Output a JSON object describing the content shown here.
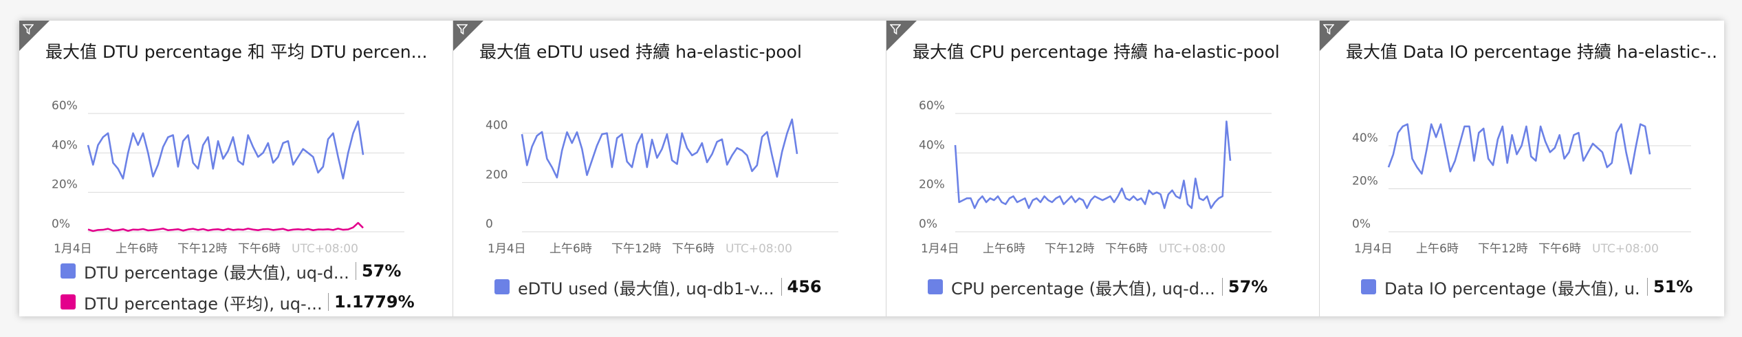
{
  "tiles": [
    {
      "title": "最大值 DTU percentage 和 平均 DTU percen...",
      "legend": [
        {
          "label": "DTU percentage (最大值), uq-d...",
          "value": "57%",
          "color": "#6b81e6"
        },
        {
          "label": "DTU percentage (平均), uq-...",
          "value": "1.1779%",
          "color": "#e3008c"
        }
      ]
    },
    {
      "title": "最大值 eDTU used 持續 ha-elastic-pool",
      "legend": [
        {
          "label": "eDTU used (最大值), uq-db1-v...",
          "value": "456",
          "color": "#6b81e6"
        }
      ]
    },
    {
      "title": "最大值 CPU percentage 持續 ha-elastic-pool",
      "legend": [
        {
          "label": "CPU percentage (最大值), uq-d...",
          "value": "57%",
          "color": "#6b81e6"
        }
      ]
    },
    {
      "title": "最大值 Data IO percentage 持續 ha-elastic-...",
      "legend": [
        {
          "label": "Data IO percentage (最大值), u...",
          "value": "51%",
          "color": "#6b81e6"
        }
      ]
    }
  ],
  "chart_data": [
    {
      "type": "line",
      "ylim": [
        0,
        60
      ],
      "yticks": [
        "0%",
        "20%",
        "40%",
        "60%"
      ],
      "ytick_values": [
        0,
        20,
        40,
        60
      ],
      "x_ticks": [
        "1月4日",
        "上午6時",
        "下午12時",
        "下午6時"
      ],
      "timezone_label": "UTC+08:00",
      "series": [
        {
          "name": "DTU percentage (最大值), uq-d...",
          "color": "#6b81e6",
          "values": [
            44,
            34,
            44,
            48,
            50,
            35,
            32,
            27,
            40,
            50,
            44,
            50,
            40,
            28,
            34,
            43,
            48,
            49,
            33,
            46,
            49,
            35,
            32,
            44,
            48,
            32,
            46,
            37,
            41,
            48,
            36,
            34,
            49,
            43,
            38,
            40,
            45,
            35,
            38,
            45,
            46,
            34,
            38,
            42,
            40,
            38,
            30,
            33,
            47,
            50,
            38,
            27,
            40,
            50,
            56,
            39
          ]
        },
        {
          "name": "DTU percentage (平均), uq-...",
          "color": "#e3008c",
          "values": [
            1.2,
            0.4,
            0.9,
            1.0,
            1.5,
            0.6,
            0.8,
            1.3,
            0.5,
            1.1,
            1.0,
            1.4,
            0.7,
            0.9,
            1.2,
            1.6,
            0.8,
            1.0,
            1.3,
            0.6,
            1.2,
            1.5,
            0.9,
            1.4,
            0.7,
            1.1,
            1.3,
            0.8,
            1.5,
            0.9,
            1.2,
            1.0,
            1.6,
            1.1,
            0.8,
            1.3,
            1.4,
            0.9,
            1.2,
            1.5,
            0.7,
            1.1,
            1.3,
            1.0,
            1.4,
            0.8,
            1.2,
            1.1,
            1.3,
            0.9,
            1.6,
            1.0,
            1.2,
            2.2,
            4.5,
            2.0
          ]
        }
      ]
    },
    {
      "type": "line",
      "ylim": [
        0,
        480
      ],
      "yticks": [
        "0",
        "200",
        "400"
      ],
      "ytick_values": [
        0,
        200,
        400
      ],
      "x_ticks": [
        "1月4日",
        "上午6時",
        "下午12時",
        "下午6時"
      ],
      "timezone_label": "UTC+08:00",
      "series": [
        {
          "name": "eDTU used (最大值), uq-db1-v...",
          "color": "#6b81e6",
          "values": [
            396,
            270,
            345,
            390,
            405,
            296,
            262,
            220,
            330,
            404,
            360,
            404,
            336,
            230,
            290,
            350,
            396,
            400,
            262,
            380,
            396,
            285,
            262,
            354,
            396,
            262,
            374,
            300,
            336,
            396,
            290,
            275,
            400,
            340,
            310,
            322,
            360,
            282,
            315,
            365,
            375,
            272,
            310,
            340,
            330,
            310,
            246,
            270,
            385,
            405,
            310,
            223,
            325,
            400,
            456,
            316
          ]
        }
      ]
    },
    {
      "type": "line",
      "ylim": [
        0,
        60
      ],
      "yticks": [
        "0%",
        "20%",
        "40%",
        "60%"
      ],
      "ytick_values": [
        0,
        20,
        40,
        60
      ],
      "x_ticks": [
        "1月4日",
        "上午6時",
        "下午12時",
        "下午6時"
      ],
      "timezone_label": "UTC+08:00",
      "series": [
        {
          "name": "CPU percentage (最大值), uq-d...",
          "color": "#6b81e6",
          "values": [
            44,
            15,
            16,
            17,
            17,
            12,
            16,
            18,
            15,
            17,
            16,
            18,
            15,
            14,
            17,
            18,
            15,
            16,
            17,
            12,
            16,
            17,
            15,
            18,
            16,
            15,
            17,
            18,
            14,
            16,
            18,
            15,
            17,
            16,
            12,
            16,
            18,
            17,
            16,
            17,
            18,
            15,
            18,
            22,
            17,
            16,
            18,
            16,
            17,
            14,
            21,
            19,
            20,
            19,
            12,
            19,
            21,
            18,
            17,
            26,
            14,
            12,
            27,
            17,
            16,
            18,
            12,
            15,
            17,
            18,
            56,
            36
          ]
        }
      ]
    },
    {
      "type": "line",
      "ylim": [
        0,
        55
      ],
      "yticks": [
        "0%",
        "20%",
        "40%"
      ],
      "ytick_values": [
        0,
        20,
        40
      ],
      "x_ticks": [
        "1月4日",
        "上午6時",
        "下午12時",
        "下午6時"
      ],
      "timezone_label": "UTC+08:00",
      "series": [
        {
          "name": "Data IO percentage (最大值), u...",
          "color": "#6b81e6",
          "values": [
            30,
            36,
            46,
            49,
            50,
            34,
            30,
            27,
            38,
            50,
            44,
            50,
            39,
            28,
            33,
            41,
            49,
            49,
            33,
            46,
            48,
            34,
            31,
            43,
            49,
            32,
            45,
            36,
            40,
            49,
            35,
            33,
            49,
            42,
            37,
            39,
            45,
            34,
            37,
            45,
            46,
            33,
            37,
            41,
            39,
            37,
            30,
            32,
            46,
            50,
            37,
            27,
            39,
            50,
            49,
            36
          ]
        }
      ]
    }
  ]
}
